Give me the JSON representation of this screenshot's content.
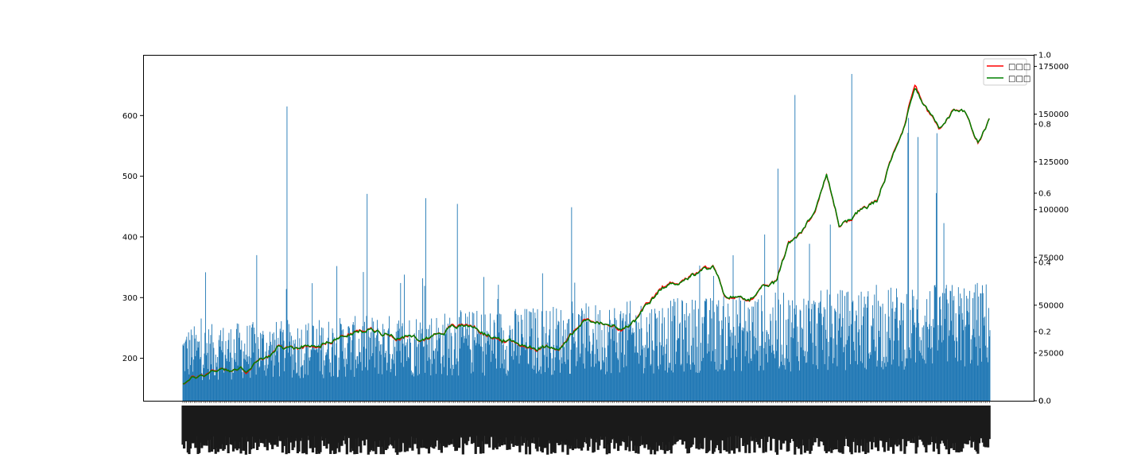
{
  "chart_data": {
    "type": "bar+line",
    "title": "",
    "xlabel": "",
    "ylabel": "",
    "left_axis": {
      "ylim": [
        130,
        700
      ],
      "ticks": [
        200,
        300,
        400,
        500,
        600
      ],
      "tick_labels": [
        "200",
        "300",
        "400",
        "500",
        "600"
      ]
    },
    "right_axis_volume": {
      "ylim": [
        0,
        181000
      ],
      "ticks": [
        0,
        25000,
        50000,
        75000,
        100000,
        125000,
        150000,
        175000
      ],
      "tick_labels": [
        "0",
        "25000",
        "50000",
        "75000",
        "100000",
        "125000",
        "150000",
        "175000"
      ]
    },
    "right_axis_twin": {
      "ylim": [
        0,
        1
      ],
      "ticks": [
        0,
        0.2,
        0.4,
        0.6,
        0.8,
        1.0
      ],
      "tick_labels": [
        "0.0",
        "0.2",
        "0.4",
        "0.6",
        "0.8",
        "1.0"
      ]
    },
    "legend": {
      "placement": "top-right",
      "entries": [
        {
          "label": "□□□",
          "color": "#ff0000"
        },
        {
          "label": "□□□",
          "color": "#008000"
        }
      ]
    },
    "series_line_anchors": {
      "x_index": [
        0,
        60,
        100,
        150,
        200,
        260,
        300,
        340,
        380,
        420,
        460,
        480,
        520,
        560,
        600,
        640,
        680,
        700,
        720,
        760,
        800,
        840,
        860,
        900,
        940,
        960,
        980,
        1000,
        1020
      ],
      "close": [
        160,
        185,
        180,
        215,
        220,
        240,
        248,
        238,
        230,
        250,
        255,
        240,
        225,
        218,
        222,
        265,
        250,
        245,
        265,
        315,
        335,
        350,
        300,
        300,
        325,
        390,
        410,
        440,
        500
      ],
      "open": [
        160,
        184,
        181,
        214,
        221,
        239,
        247,
        239,
        231,
        249,
        254,
        241,
        226,
        219,
        221,
        264,
        251,
        246,
        264,
        314,
        334,
        349,
        301,
        301,
        324,
        389,
        411,
        441,
        501
      ]
    },
    "series_line_anchors_tail": {
      "x_index": [
        1040,
        1060,
        1080,
        1100,
        1120,
        1140,
        1160,
        1180,
        1200,
        1220,
        1240,
        1260,
        1280
      ],
      "close": [
        420,
        430,
        450,
        460,
        520,
        570,
        655,
        610,
        580,
        610,
        600,
        560,
        598
      ],
      "open": [
        421,
        431,
        449,
        459,
        519,
        569,
        650,
        611,
        581,
        609,
        601,
        561,
        597
      ]
    },
    "volume_summary": {
      "bar_count": 1280,
      "typical_range": [
        15000,
        60000
      ],
      "spikes": [
        {
          "index": 165,
          "value": 154000
        },
        {
          "index": 385,
          "value": 106000
        },
        {
          "index": 435,
          "value": 103000
        },
        {
          "index": 970,
          "value": 160000
        },
        {
          "index": 1060,
          "value": 171000
        },
        {
          "index": 1150,
          "value": 148000
        },
        {
          "index": 1195,
          "value": 140000
        },
        {
          "index": 1165,
          "value": 138000
        }
      ]
    },
    "x_tick_labels_note": "dense overlapping date labels rotated 90°, illegible"
  }
}
